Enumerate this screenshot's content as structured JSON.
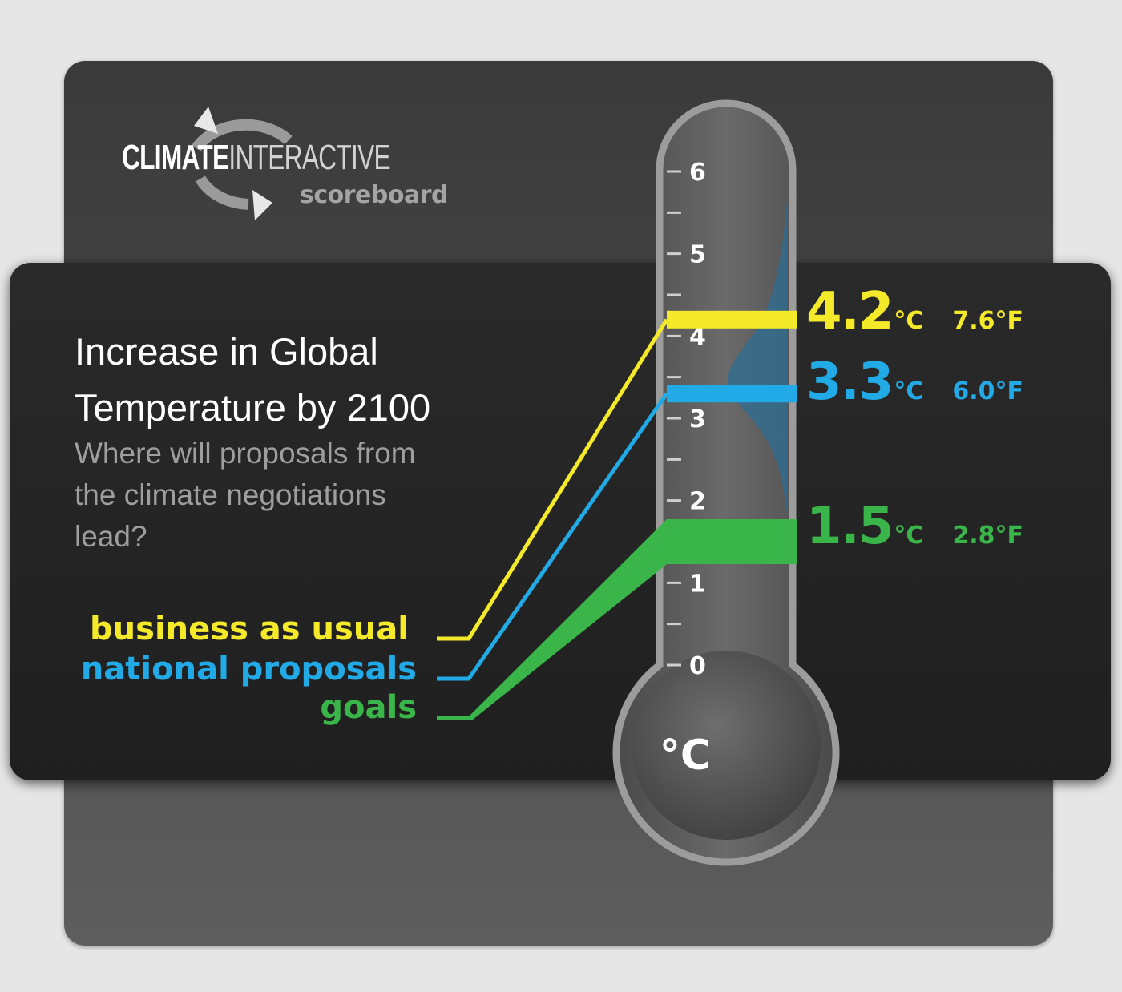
{
  "logo": {
    "name_part1": "CLIMATE",
    "name_part2": "INTERACTIVE",
    "subtitle": "scoreboard",
    "icon": "recycle-arrows-icon"
  },
  "heading": {
    "title": "Increase in Global Temperature by 2100",
    "subtitle": "Where will proposals from the climate negotiations lead?"
  },
  "thermometer": {
    "unit_label": "°C"
  },
  "colors": {
    "business_as_usual": "#f5ea2a",
    "national_proposals": "#22aae6",
    "goals": "#39b54a",
    "panel_back": "#464646",
    "panel_front": "#222222"
  },
  "chart_data": {
    "type": "bar",
    "title": "Increase in Global Temperature by 2100",
    "ylabel": "°C",
    "ylim": [
      0,
      6
    ],
    "yticks": [
      "0",
      "1",
      "2",
      "3",
      "4",
      "5",
      "6"
    ],
    "series": [
      {
        "name": "business as usual",
        "value": 4.2,
        "label_c": "4.2",
        "label_f": "7.6",
        "color": "#f5ea2a"
      },
      {
        "name": "national proposals",
        "value": 3.3,
        "label_c": "3.3",
        "label_f": "6.0",
        "color": "#22aae6"
      },
      {
        "name": "goals",
        "value": 1.5,
        "label_c": "1.5",
        "label_f": "2.8",
        "color": "#39b54a"
      }
    ],
    "unit_c": "°C",
    "unit_f": "°F"
  }
}
